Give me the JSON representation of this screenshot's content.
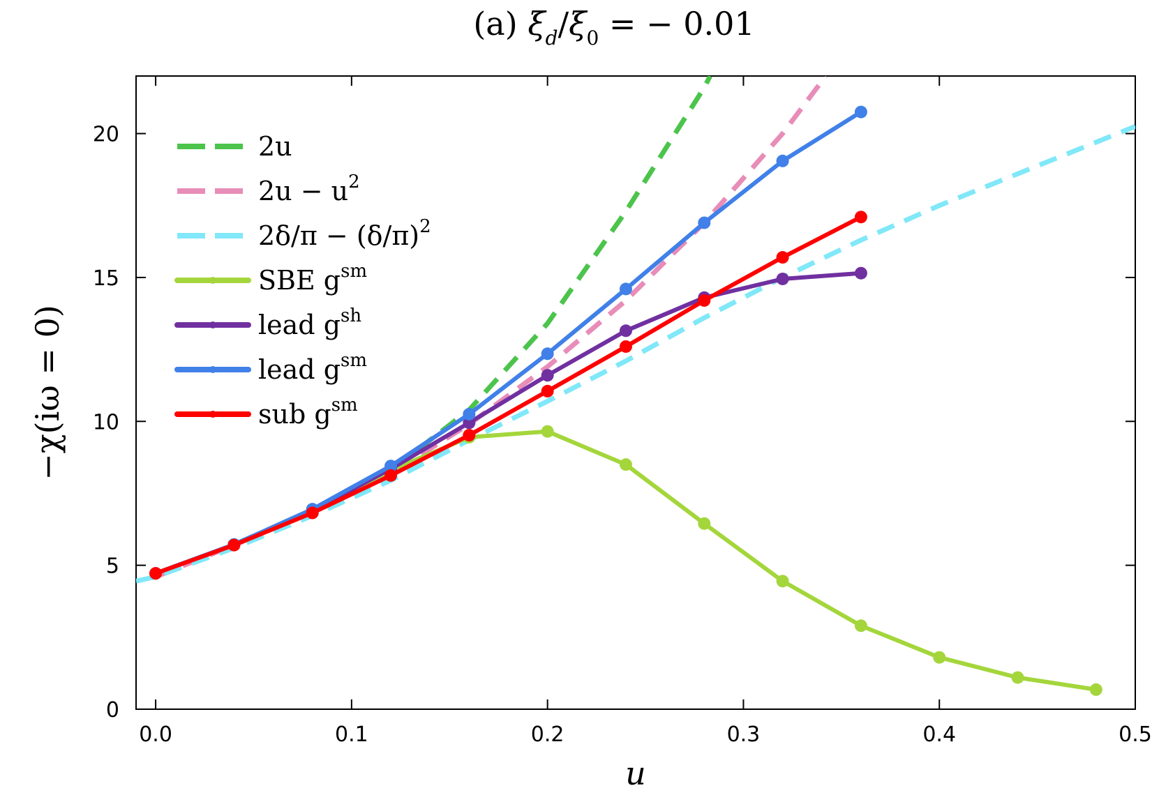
{
  "chart_data": {
    "type": "line",
    "title": "(a) ξ_d/ξ_0 = −0.01",
    "title_parts": {
      "prefix": "(a) ",
      "xi": "ξ",
      "sub_d": "d",
      "slash": "/",
      "sub_0": "0",
      "rhs": " = − 0.01"
    },
    "xlabel": "u",
    "ylabel": "−χ(iω = 0)",
    "xlim": [
      -0.01,
      0.5
    ],
    "ylim": [
      0,
      22
    ],
    "xticks": [
      0.0,
      0.1,
      0.2,
      0.3,
      0.4,
      0.5
    ],
    "xtick_labels": [
      "0.0",
      "0.1",
      "0.2",
      "0.3",
      "0.4",
      "0.5"
    ],
    "yticks": [
      0,
      5,
      10,
      15,
      20
    ],
    "ytick_labels": [
      "0",
      "5",
      "10",
      "15",
      "20"
    ],
    "grid": false,
    "legend_position": "top-left",
    "series": [
      {
        "name": "2u",
        "legend": {
          "main": "2u",
          "sup": ""
        },
        "style": "dashed",
        "markers": false,
        "color": "#4cc44c",
        "x": [
          0.0,
          0.04,
          0.08,
          0.12,
          0.16,
          0.2,
          0.24,
          0.28,
          0.283
        ],
        "y": [
          4.6,
          5.72,
          6.9,
          8.3,
          10.4,
          13.4,
          17.3,
          21.6,
          22.0
        ]
      },
      {
        "name": "2u − u²",
        "legend": {
          "main": "2u − u",
          "sup": "2"
        },
        "style": "dashed",
        "markers": false,
        "color": "#e88cb8",
        "x": [
          0.0,
          0.04,
          0.08,
          0.12,
          0.16,
          0.2,
          0.24,
          0.28,
          0.32,
          0.342
        ],
        "y": [
          4.6,
          5.7,
          6.88,
          8.2,
          9.9,
          11.9,
          14.2,
          16.9,
          20.0,
          22.0
        ]
      },
      {
        "name": "2δ/π − (δ/π)²",
        "legend": {
          "main": "2δ/π − (δ/π)",
          "sup": "2"
        },
        "style": "dashed",
        "markers": false,
        "color": "#80e8f8",
        "x": [
          -0.01,
          0.0,
          0.04,
          0.08,
          0.12,
          0.16,
          0.2,
          0.24,
          0.28,
          0.32,
          0.36,
          0.4,
          0.44,
          0.5
        ],
        "y": [
          4.45,
          4.6,
          5.6,
          6.72,
          7.95,
          9.35,
          10.7,
          12.1,
          13.6,
          15.0,
          16.3,
          17.5,
          18.6,
          20.25
        ]
      },
      {
        "name": "SBE g^sm",
        "legend": {
          "main": "SBE g",
          "sup": "sm"
        },
        "style": "solid",
        "markers": true,
        "color": "#a4d63c",
        "x": [
          0.0,
          0.04,
          0.08,
          0.12,
          0.16,
          0.2,
          0.24,
          0.28,
          0.32,
          0.36,
          0.4,
          0.44,
          0.48
        ],
        "y": [
          4.72,
          5.72,
          6.88,
          8.3,
          9.45,
          9.65,
          8.5,
          6.45,
          4.45,
          2.9,
          1.8,
          1.1,
          0.68
        ]
      },
      {
        "name": "lead g^sh",
        "legend": {
          "main": "lead g",
          "sup": "sh"
        },
        "style": "solid",
        "markers": true,
        "color": "#7030a0",
        "x": [
          0.0,
          0.04,
          0.08,
          0.12,
          0.16,
          0.2,
          0.24,
          0.28,
          0.32,
          0.36
        ],
        "y": [
          4.72,
          5.72,
          6.9,
          8.35,
          9.95,
          11.6,
          13.15,
          14.3,
          14.95,
          15.15
        ]
      },
      {
        "name": "lead g^sm",
        "legend": {
          "main": "lead g",
          "sup": "sm"
        },
        "style": "solid",
        "markers": true,
        "color": "#4080e8",
        "x": [
          0.0,
          0.04,
          0.08,
          0.12,
          0.16,
          0.2,
          0.24,
          0.28,
          0.32,
          0.36
        ],
        "y": [
          4.72,
          5.72,
          6.95,
          8.45,
          10.25,
          12.35,
          14.6,
          16.9,
          19.05,
          20.75
        ]
      },
      {
        "name": "sub g^sm",
        "legend": {
          "main": "sub g",
          "sup": "sm"
        },
        "style": "solid",
        "markers": true,
        "color": "#ff0000",
        "x": [
          0.0,
          0.04,
          0.08,
          0.12,
          0.16,
          0.2,
          0.24,
          0.28,
          0.32,
          0.36
        ],
        "y": [
          4.72,
          5.7,
          6.82,
          8.12,
          9.52,
          11.05,
          12.6,
          14.2,
          15.7,
          17.1
        ]
      }
    ]
  }
}
